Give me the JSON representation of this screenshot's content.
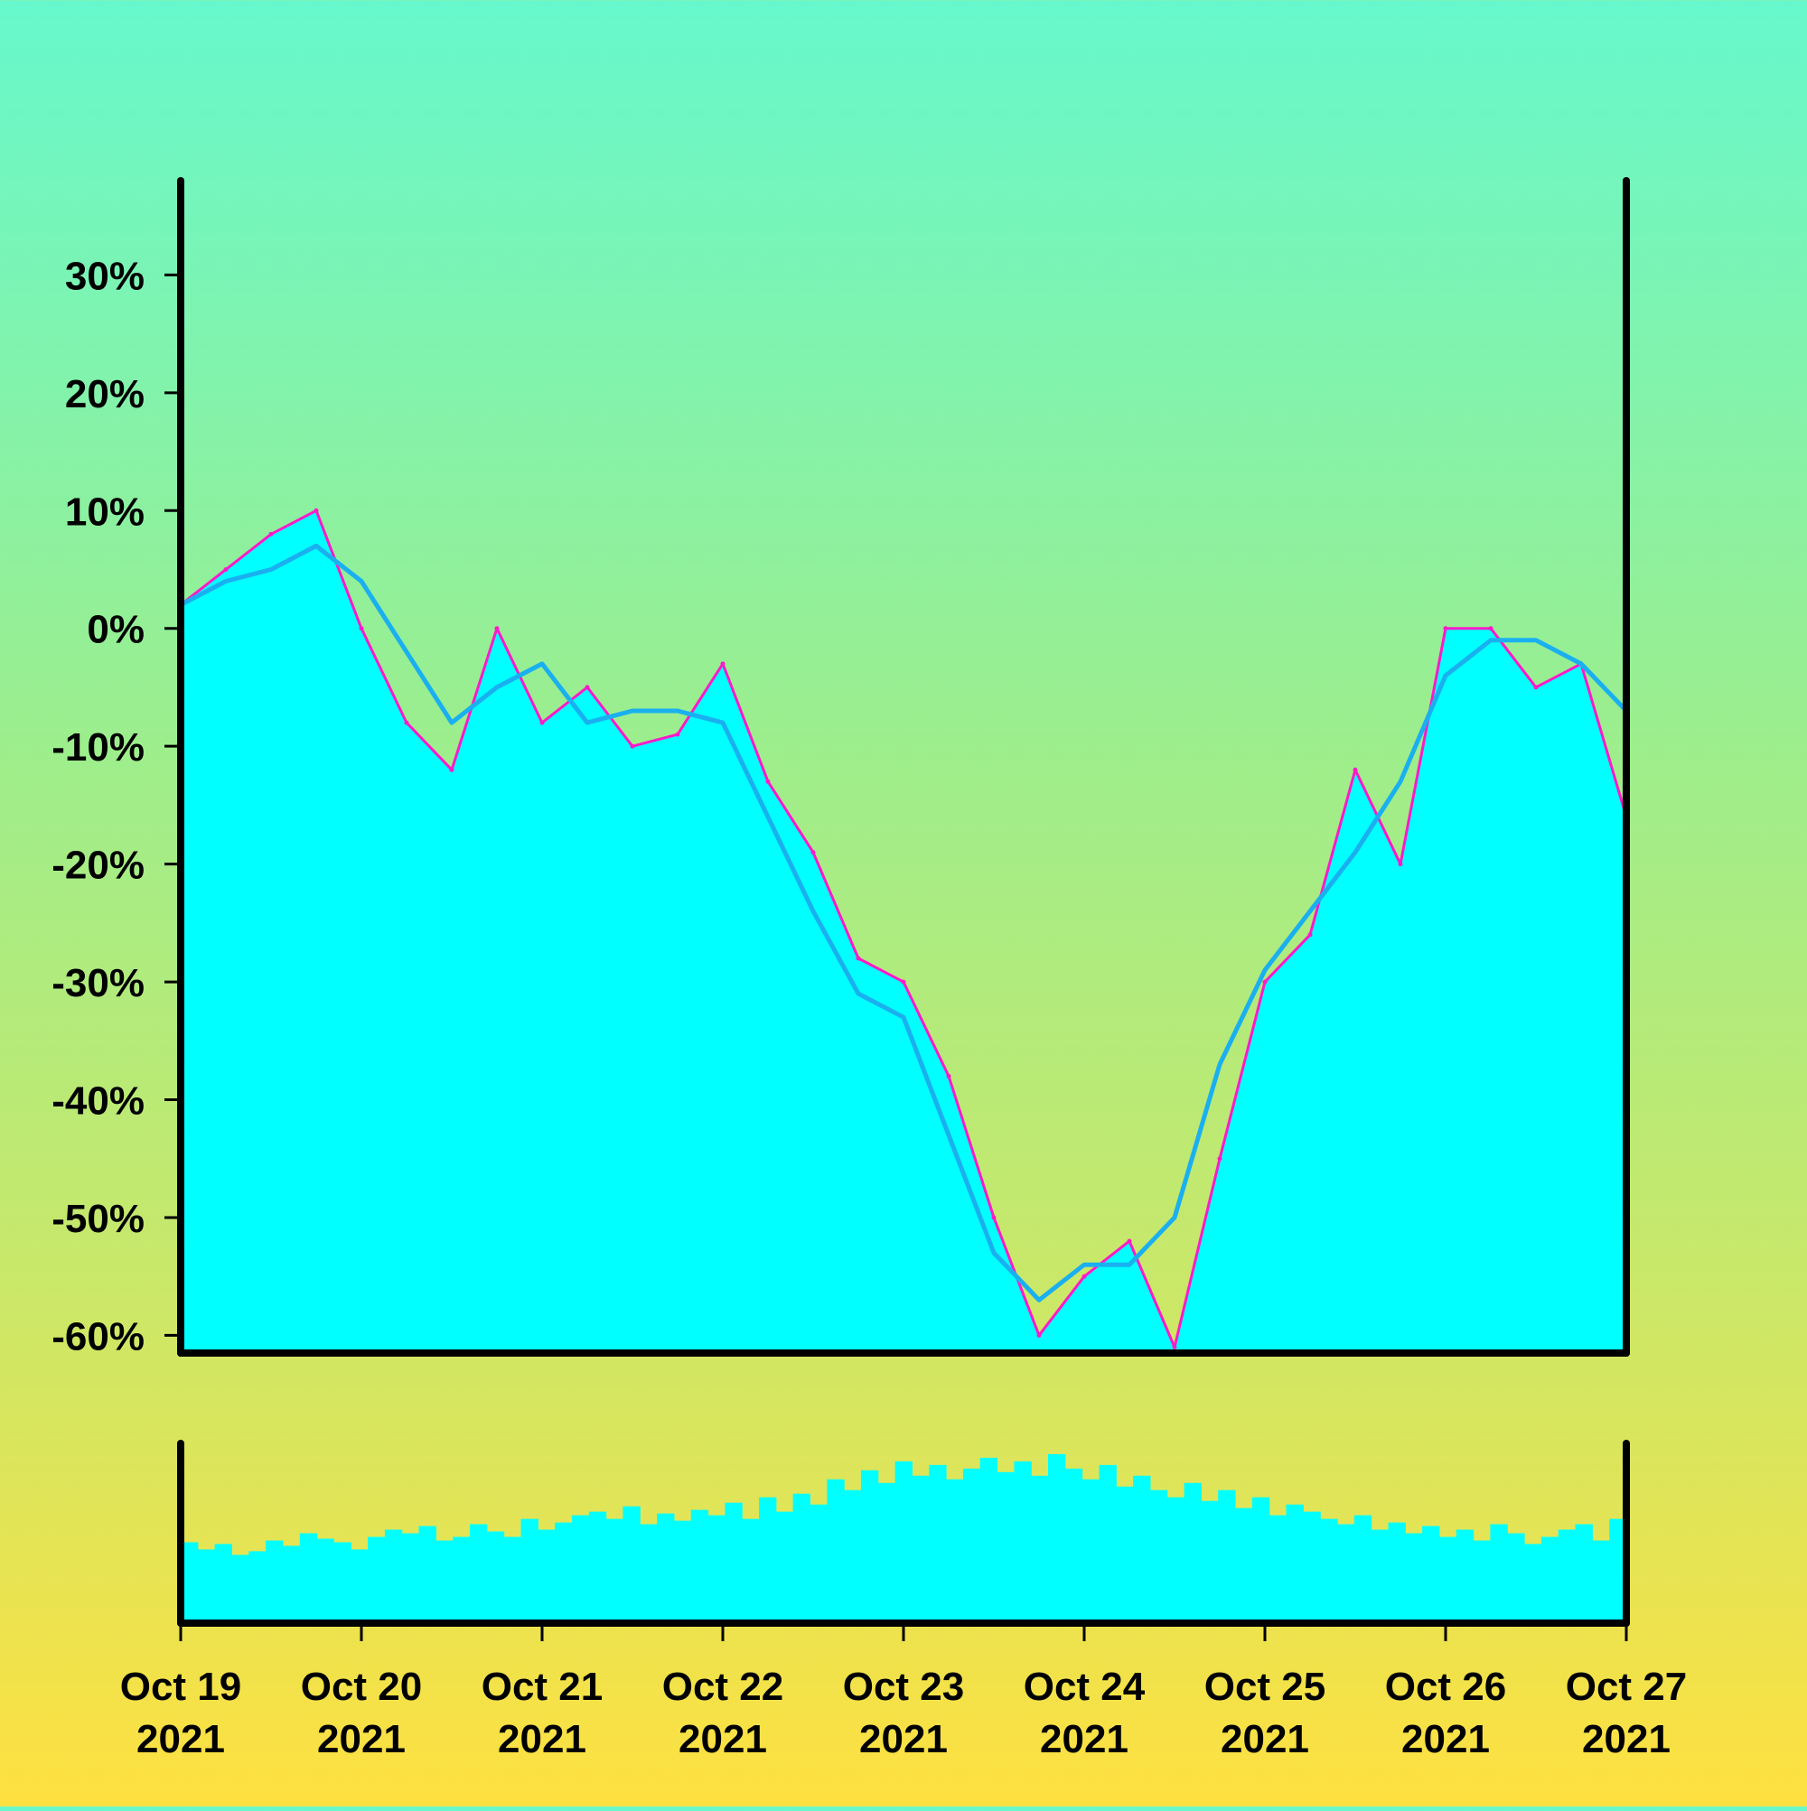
{
  "chart_data": {
    "type": "area",
    "title": "",
    "xlabel": "",
    "ylabel": "",
    "y_unit": "%",
    "ylim": [
      -61.5,
      38
    ],
    "xlim": [
      "2021-10-19",
      "2021-10-27"
    ],
    "grid": false,
    "legend": "none",
    "yticks": [
      {
        "value": 30,
        "label": "30%"
      },
      {
        "value": 20,
        "label": "20%"
      },
      {
        "value": 10,
        "label": "10%"
      },
      {
        "value": 0,
        "label": "0%"
      },
      {
        "value": -10,
        "label": "-10%"
      },
      {
        "value": -20,
        "label": "-20%"
      },
      {
        "value": -30,
        "label": "-30%"
      },
      {
        "value": -40,
        "label": "-40%"
      },
      {
        "value": -50,
        "label": "-50%"
      },
      {
        "value": -60,
        "label": "-60%"
      }
    ],
    "xticks": [
      {
        "date": "2021-10-19",
        "line1": "Oct 19",
        "line2": "2021"
      },
      {
        "date": "2021-10-20",
        "line1": "Oct 20",
        "line2": "2021"
      },
      {
        "date": "2021-10-21",
        "line1": "Oct 21",
        "line2": "2021"
      },
      {
        "date": "2021-10-22",
        "line1": "Oct 22",
        "line2": "2021"
      },
      {
        "date": "2021-10-23",
        "line1": "Oct 23",
        "line2": "2021"
      },
      {
        "date": "2021-10-24",
        "line1": "Oct 24",
        "line2": "2021"
      },
      {
        "date": "2021-10-25",
        "line1": "Oct 25",
        "line2": "2021"
      },
      {
        "date": "2021-10-26",
        "line1": "Oct 26",
        "line2": "2021"
      },
      {
        "date": "2021-10-27",
        "line1": "Oct 27",
        "line2": "2021"
      }
    ],
    "x": [
      "2021-10-19 00:00",
      "2021-10-19 06:00",
      "2021-10-19 12:00",
      "2021-10-19 18:00",
      "2021-10-20 00:00",
      "2021-10-20 06:00",
      "2021-10-20 12:00",
      "2021-10-20 18:00",
      "2021-10-21 00:00",
      "2021-10-21 06:00",
      "2021-10-21 12:00",
      "2021-10-21 18:00",
      "2021-10-22 00:00",
      "2021-10-22 06:00",
      "2021-10-22 12:00",
      "2021-10-22 18:00",
      "2021-10-23 00:00",
      "2021-10-23 06:00",
      "2021-10-23 12:00",
      "2021-10-23 18:00",
      "2021-10-24 00:00",
      "2021-10-24 06:00",
      "2021-10-24 12:00",
      "2021-10-24 18:00",
      "2021-10-25 00:00",
      "2021-10-25 06:00",
      "2021-10-25 12:00",
      "2021-10-25 18:00",
      "2021-10-26 00:00",
      "2021-10-26 06:00",
      "2021-10-26 12:00",
      "2021-10-26 18:00",
      "2021-10-27 00:00"
    ],
    "series": [
      {
        "role": "price",
        "color": "#FF1AC8",
        "fill": "#00FFFF",
        "values": [
          2,
          5,
          8,
          10,
          0,
          -8,
          -12,
          0,
          -8,
          -5,
          -10,
          -9,
          -3,
          -13,
          -19,
          -28,
          -30,
          -38,
          -50,
          -60,
          -55,
          -52,
          -61,
          -45,
          -30,
          -26,
          -12,
          -20,
          0,
          0,
          -5,
          -3,
          -16
        ]
      },
      {
        "role": "moving-average",
        "color": "#1AB0F0",
        "values": [
          2,
          4,
          5,
          7,
          4,
          -2,
          -8,
          -5,
          -3,
          -8,
          -7,
          -7,
          -8,
          -16,
          -24,
          -31,
          -33,
          -43,
          -53,
          -57,
          -54,
          -54,
          -50,
          -37,
          -29,
          -24,
          -19,
          -13,
          -4,
          -1,
          -1,
          -3,
          -7
        ]
      }
    ],
    "volume": {
      "color": "#00FFFF",
      "ylim": [
        0,
        100
      ],
      "values": [
        45,
        41,
        44,
        38,
        40,
        46,
        43,
        50,
        47,
        45,
        41,
        48,
        52,
        50,
        54,
        46,
        48,
        55,
        51,
        48,
        58,
        52,
        56,
        60,
        62,
        58,
        65,
        55,
        61,
        57,
        63,
        60,
        67,
        58,
        70,
        62,
        72,
        66,
        80,
        74,
        85,
        78,
        90,
        82,
        88,
        80,
        86,
        92,
        84,
        90,
        82,
        94,
        86,
        80,
        88,
        76,
        82,
        74,
        70,
        78,
        68,
        74,
        64,
        70,
        60,
        66,
        62,
        58,
        55,
        60,
        52,
        56,
        50,
        54,
        48,
        52,
        46,
        55,
        50,
        44,
        48,
        52,
        55,
        46,
        58
      ]
    }
  }
}
